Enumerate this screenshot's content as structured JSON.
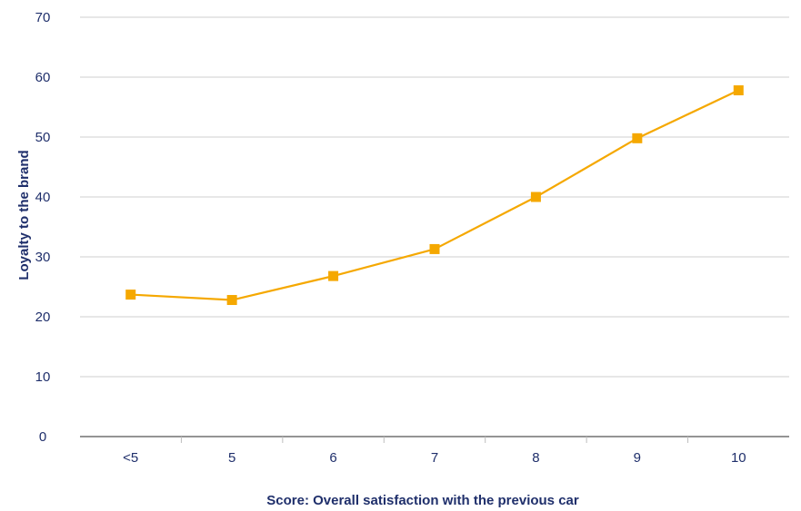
{
  "chart_data": {
    "type": "line",
    "title": "",
    "xlabel": "Score: Overall satisfaction with the previous car",
    "ylabel": "Loyalty to the brand",
    "categories": [
      "<5",
      "5",
      "6",
      "7",
      "8",
      "9",
      "10"
    ],
    "series": [
      {
        "values": [
          23.7,
          22.8,
          26.8,
          31.3,
          40.0,
          49.8,
          57.8
        ]
      }
    ],
    "ylim": [
      0,
      70
    ],
    "yticks": [
      "0",
      "10",
      "20",
      "30",
      "40",
      "50",
      "60",
      "70"
    ],
    "grid": true,
    "legend": "none",
    "colors": {
      "series": "#f5a800",
      "text": "#1f2f6b",
      "grid": "#cfcfcf"
    }
  }
}
